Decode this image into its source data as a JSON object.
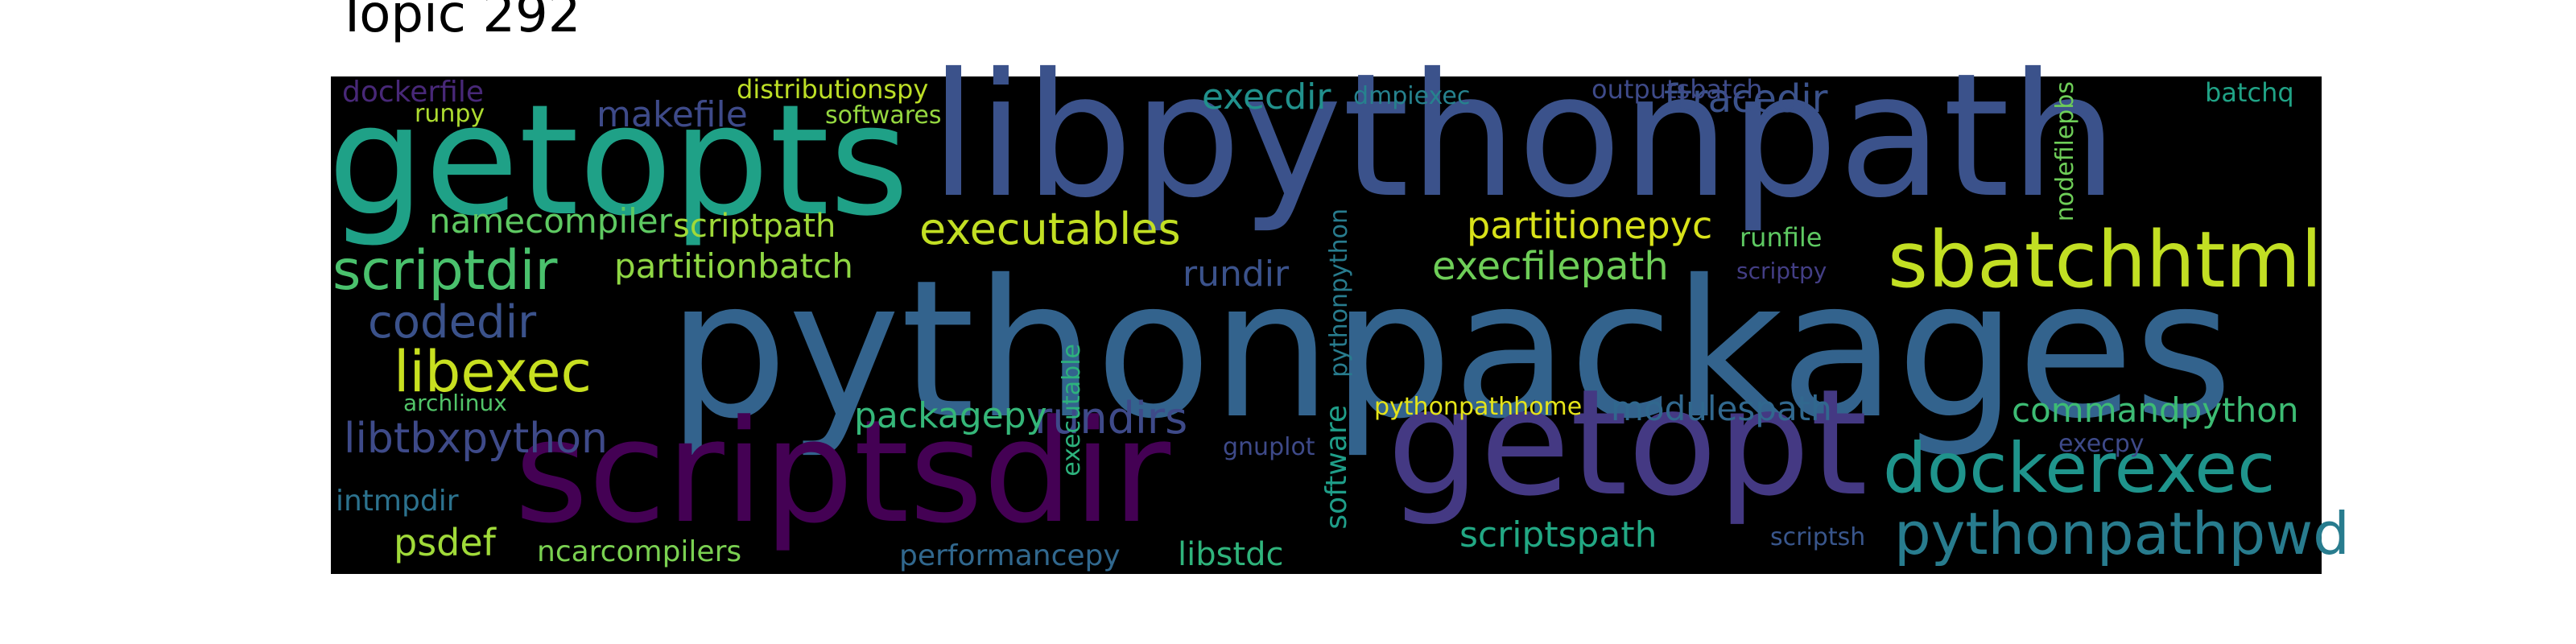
{
  "title": "Topic 292",
  "words": [
    {
      "text": "libpythonpath",
      "color": "#3b528b"
    },
    {
      "text": "pythonpackages",
      "color": "#33638d"
    },
    {
      "text": "getopts",
      "color": "#1fa187"
    },
    {
      "text": "scriptsdir",
      "color": "#440154"
    },
    {
      "text": "getopt",
      "color": "#443983"
    },
    {
      "text": "sbatchhtml",
      "color": "#c2df23"
    },
    {
      "text": "dockerexec",
      "color": "#1f948c"
    },
    {
      "text": "pythonpathpwd",
      "color": "#287c8e"
    },
    {
      "text": "scriptdir",
      "color": "#4ac16d"
    },
    {
      "text": "libexec",
      "color": "#c8e020"
    },
    {
      "text": "codedir",
      "color": "#3b528b"
    },
    {
      "text": "libtbxpython",
      "color": "#3e4a89"
    },
    {
      "text": "executables",
      "color": "#c2df23"
    },
    {
      "text": "execfilepath",
      "color": "#6ece58"
    },
    {
      "text": "partitionbatch",
      "color": "#8fd744"
    },
    {
      "text": "makefile",
      "color": "#3e4a89"
    },
    {
      "text": "namecompiler",
      "color": "#5ec962"
    },
    {
      "text": "scriptpath",
      "color": "#a0da39"
    },
    {
      "text": "partitionepyc",
      "color": "#d8e219"
    },
    {
      "text": "ftracedir",
      "color": "#3b528b"
    },
    {
      "text": "execdir",
      "color": "#21918c"
    },
    {
      "text": "rundir",
      "color": "#3b528b"
    },
    {
      "text": "rundirs",
      "color": "#3e4a89"
    },
    {
      "text": "packagepy",
      "color": "#35b779"
    },
    {
      "text": "commandpython",
      "color": "#3dbc74"
    },
    {
      "text": "modulespath",
      "color": "#31688e"
    },
    {
      "text": "scriptspath",
      "color": "#22a884"
    },
    {
      "text": "psdef",
      "color": "#a0da39"
    },
    {
      "text": "ncarcompilers",
      "color": "#7ad151"
    },
    {
      "text": "libstdc",
      "color": "#2fb47c"
    },
    {
      "text": "performancepy",
      "color": "#31688e"
    },
    {
      "text": "intmpdir",
      "color": "#2c728e"
    },
    {
      "text": "dockerfile",
      "color": "#482878"
    },
    {
      "text": "distributionspy",
      "color": "#bddf26"
    },
    {
      "text": "runpy",
      "color": "#addc30"
    },
    {
      "text": "softwares",
      "color": "#95d840"
    },
    {
      "text": "dmpiexec",
      "color": "#26828e"
    },
    {
      "text": "outputsbatch",
      "color": "#3e4a89"
    },
    {
      "text": "batchq",
      "color": "#20a386"
    },
    {
      "text": "runfile",
      "color": "#5ec962"
    },
    {
      "text": "scriptpy",
      "color": "#433e85"
    },
    {
      "text": "pythonpathhome",
      "color": "#e5e419"
    },
    {
      "text": "gnuplot",
      "color": "#3e4a89"
    },
    {
      "text": "execpy",
      "color": "#3e4a89"
    },
    {
      "text": "scriptsh",
      "color": "#39568c"
    },
    {
      "text": "archlinux",
      "color": "#52c569"
    },
    {
      "text": "software",
      "color": "#1f9e89"
    },
    {
      "text": "pythonpython",
      "color": "#287c8e"
    },
    {
      "text": "executable",
      "color": "#2db27d"
    },
    {
      "text": "nodefilepbs",
      "color": "#6ece58"
    }
  ]
}
